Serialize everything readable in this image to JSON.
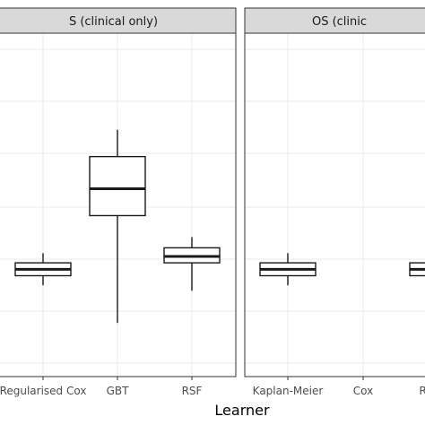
{
  "chart_data": {
    "type": "boxplot",
    "xlabel": "Learner",
    "ylabel": "",
    "ylim": [
      0,
      3.2
    ],
    "grid": true,
    "colors": {
      "strip": "#d9d9d9",
      "grid": "#ebebeb",
      "border": "#333333",
      "box": "#1a1a1a"
    },
    "panels": [
      {
        "strip": "S (clinical only)",
        "categories": [
          "Regularised Cox",
          "GBT",
          "RSF"
        ],
        "boxes": [
          {
            "learner": "Regularised Cox",
            "min": 0.85,
            "q1": 0.94,
            "median": 1.0,
            "q3": 1.06,
            "max": 1.15
          },
          {
            "learner": "GBT",
            "min": 0.5,
            "q1": 1.5,
            "median": 1.75,
            "q3": 2.05,
            "max": 2.3
          },
          {
            "learner": "RSF",
            "min": 0.8,
            "q1": 1.06,
            "median": 1.12,
            "q3": 1.2,
            "max": 1.3
          }
        ]
      },
      {
        "strip": "OS (clinic",
        "categories": [
          "Kaplan-Meier",
          "Cox",
          "Regula"
        ],
        "boxes": [
          {
            "learner": "Kaplan-Meier",
            "min": 0.85,
            "q1": 0.94,
            "median": 1.0,
            "q3": 1.06,
            "max": 1.15
          },
          {
            "learner": "Regula",
            "min": 0.85,
            "q1": 0.94,
            "median": 1.0,
            "q3": 1.06,
            "max": 1.15
          }
        ]
      }
    ]
  }
}
